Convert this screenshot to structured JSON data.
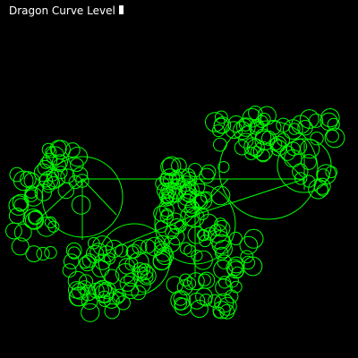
{
  "window": {
    "title": "Dragon Curve Level",
    "level_field_value": "",
    "background_color": "#000000",
    "text_color": "#ffffff"
  },
  "canvas": {
    "content": "dragon-curve-fractal",
    "stroke_color": "#00ff00"
  }
}
